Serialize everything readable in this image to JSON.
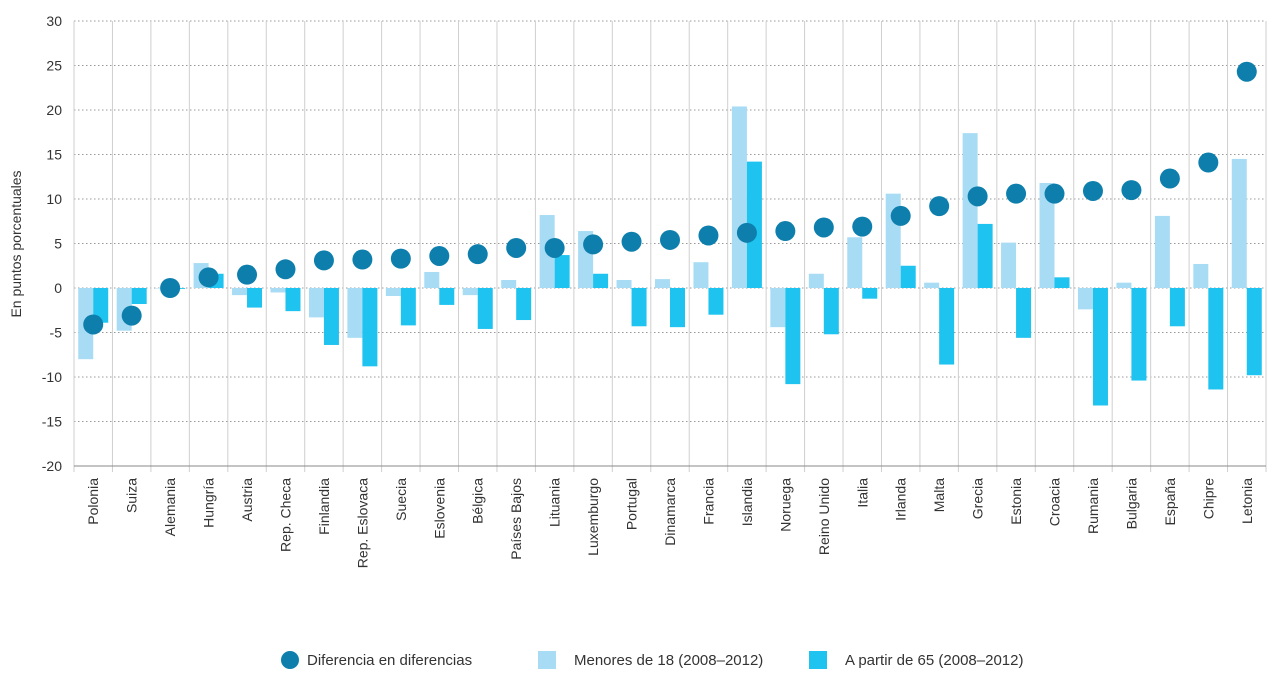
{
  "chart_data": {
    "type": "bar",
    "title": "",
    "xlabel": "",
    "ylabel": "En puntos porcentuales",
    "ylim": [
      -20,
      30
    ],
    "yticks": [
      30,
      25,
      20,
      15,
      10,
      5,
      0,
      -5,
      -10,
      -15,
      -20
    ],
    "grid": true,
    "legend_position": "bottom-center",
    "categories": [
      "Polonia",
      "Suiza",
      "Alemania",
      "Hungría",
      "Austria",
      "Rep. Checa",
      "Finlandia",
      "Rep. Eslovaca",
      "Suecia",
      "Eslovenia",
      "Bélgica",
      "Países Bajos",
      "Lituania",
      "Luxemburgo",
      "Portugal",
      "Dinamarca",
      "Francia",
      "Islandia",
      "Noruega",
      "Reino Unido",
      "Italia",
      "Irlanda",
      "Malta",
      "Grecia",
      "Estonia",
      "Croacia",
      "Rumania",
      "Bulgaria",
      "España",
      "Chipre",
      "Letonia"
    ],
    "series": [
      {
        "name": "Menores de 18 (2008–2012)",
        "kind": "bar",
        "color": "#a8dcf4",
        "values": [
          -8.0,
          -4.8,
          0.0,
          2.8,
          -0.8,
          -0.5,
          -3.3,
          -5.6,
          -0.9,
          1.8,
          -0.8,
          0.9,
          8.2,
          6.4,
          0.9,
          1.0,
          2.9,
          20.4,
          -4.4,
          1.6,
          5.7,
          10.6,
          0.6,
          17.4,
          5.1,
          11.8,
          -2.4,
          0.6,
          8.1,
          2.7,
          14.5
        ]
      },
      {
        "name": "A partir de 65 (2008–2012)",
        "kind": "bar",
        "color": "#1ec3ef",
        "values": [
          -3.9,
          -1.8,
          -0.1,
          1.6,
          -2.2,
          -2.6,
          -6.4,
          -8.8,
          -4.2,
          -1.9,
          -4.6,
          -3.6,
          3.7,
          1.6,
          -4.3,
          -4.4,
          -3.0,
          14.2,
          -10.8,
          -5.2,
          -1.2,
          2.5,
          -8.6,
          7.2,
          -5.6,
          1.2,
          -13.2,
          -10.4,
          -4.3,
          -11.4,
          -9.8
        ]
      },
      {
        "name": "Diferencia en diferencias",
        "kind": "dot",
        "color": "#0e7fad",
        "values": [
          -4.1,
          -3.1,
          0.0,
          1.2,
          1.5,
          2.1,
          3.1,
          3.2,
          3.3,
          3.6,
          3.8,
          4.5,
          4.5,
          4.9,
          5.2,
          5.4,
          5.9,
          6.2,
          6.4,
          6.8,
          6.9,
          8.1,
          9.2,
          10.3,
          10.6,
          10.6,
          10.9,
          11.0,
          12.3,
          14.1,
          24.3
        ]
      }
    ]
  },
  "legend": {
    "items": [
      {
        "label": "Diferencia en diferencias",
        "swatch": "circle",
        "color": "#0e7fad"
      },
      {
        "label": "Menores de 18 (2008–2012)",
        "swatch": "square",
        "color": "#a8dcf4"
      },
      {
        "label": "A partir de 65 (2008–2012)",
        "swatch": "square",
        "color": "#1ec3ef"
      }
    ]
  },
  "colors": {
    "grid": "#9a9a9a",
    "separator": "#cfcfcf",
    "axis": "#888888",
    "text": "#333333"
  }
}
